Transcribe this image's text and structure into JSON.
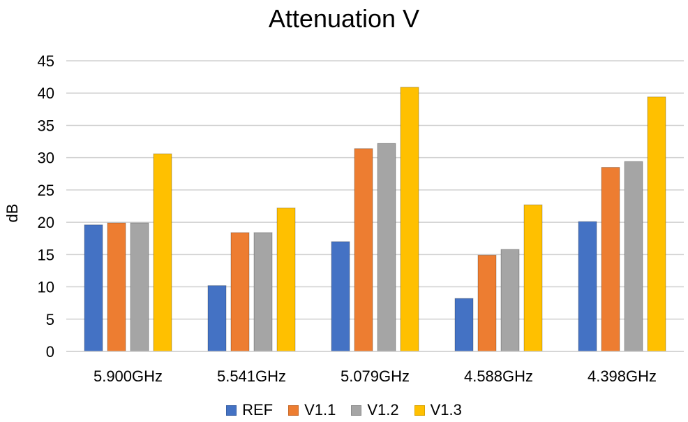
{
  "chart_data": {
    "type": "bar",
    "title": "Attenuation V",
    "xlabel": "",
    "ylabel": "dB",
    "ylim": [
      0,
      45
    ],
    "yticks": [
      0,
      5,
      10,
      15,
      20,
      25,
      30,
      35,
      40,
      45
    ],
    "categories": [
      "5.900GHz",
      "5.541GHz",
      "5.079GHz",
      "4.588GHz",
      "4.398GHz"
    ],
    "series": [
      {
        "name": "REF",
        "color": "#4472C4",
        "values": [
          19.6,
          10.2,
          17.0,
          8.2,
          20.1
        ]
      },
      {
        "name": "V1.1",
        "color": "#ED7D31",
        "values": [
          19.9,
          18.4,
          31.4,
          14.9,
          28.5
        ]
      },
      {
        "name": "V1.2",
        "color": "#A5A5A5",
        "values": [
          19.9,
          18.4,
          32.2,
          15.8,
          29.4
        ]
      },
      {
        "name": "V1.3",
        "color": "#FFC000",
        "values": [
          30.6,
          22.2,
          40.9,
          22.7,
          39.4
        ]
      }
    ],
    "grid": true,
    "legend_position": "bottom"
  }
}
